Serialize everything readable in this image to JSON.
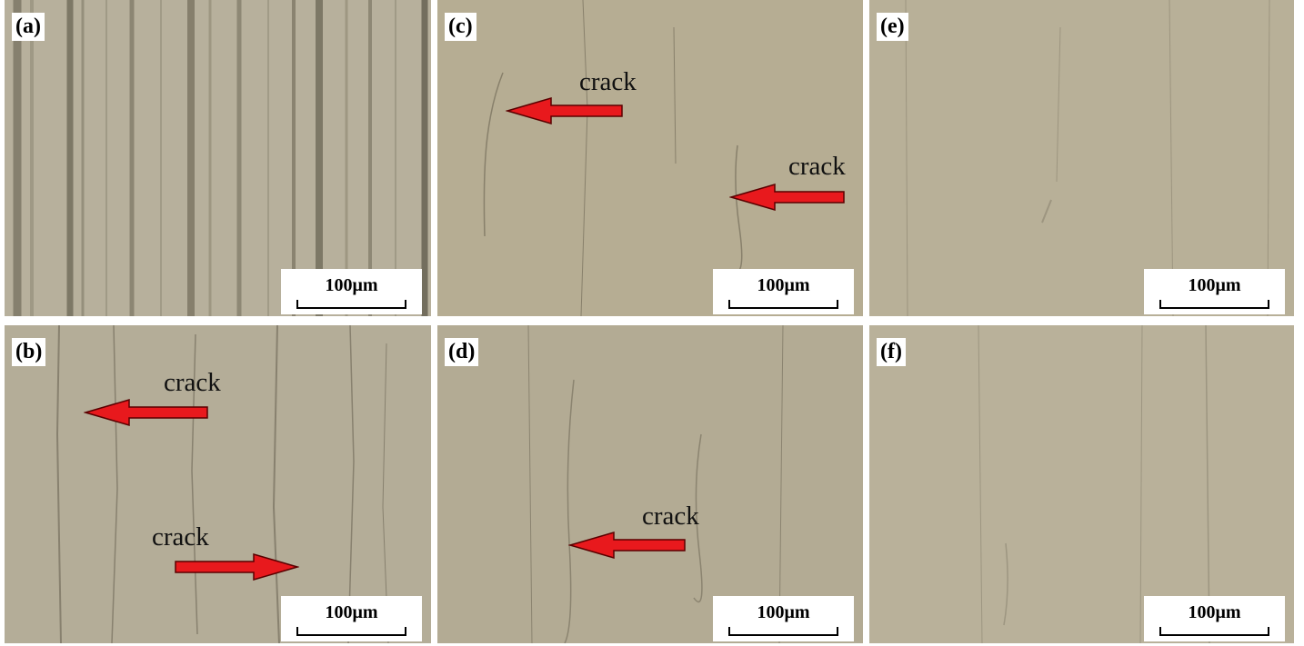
{
  "panels": [
    {
      "id": "a",
      "label": "(a)",
      "scale": "100μm",
      "cracks": []
    },
    {
      "id": "b",
      "label": "(b)",
      "scale": "100μm",
      "cracks": [
        "crack",
        "crack"
      ]
    },
    {
      "id": "c",
      "label": "(c)",
      "scale": "100μm",
      "cracks": [
        "crack",
        "crack"
      ]
    },
    {
      "id": "d",
      "label": "(d)",
      "scale": "100μm",
      "cracks": [
        "crack"
      ]
    },
    {
      "id": "e",
      "label": "(e)",
      "scale": "100μm",
      "cracks": []
    },
    {
      "id": "f",
      "label": "(f)",
      "scale": "100μm",
      "cracks": []
    }
  ],
  "colors": {
    "surface": "#b4ac94",
    "arrow": "#e8191d",
    "arrow_outline": "#5a0000"
  }
}
